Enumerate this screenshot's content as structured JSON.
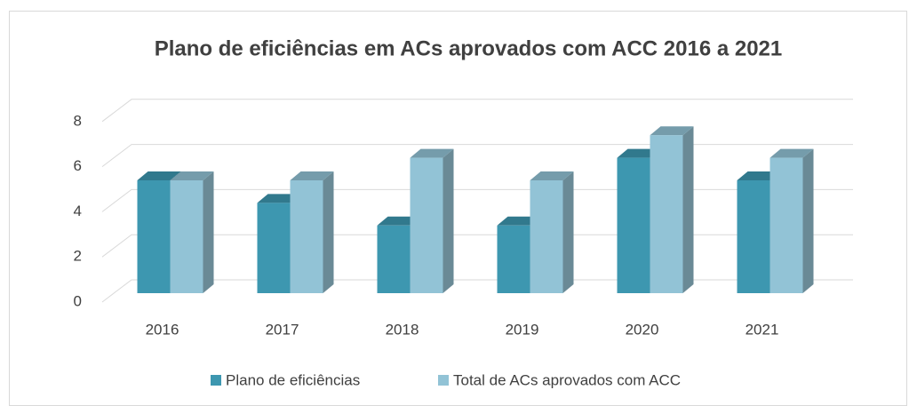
{
  "chart_data": {
    "type": "bar3d",
    "title": "Plano de eficiências em ACs aprovados com ACC  2016 a 2021",
    "categories": [
      "2016",
      "2017",
      "2018",
      "2019",
      "2020",
      "2021"
    ],
    "series": [
      {
        "name": "Plano de eficiências",
        "color": "#3d97b0",
        "values": [
          5,
          4,
          3,
          3,
          6,
          5
        ]
      },
      {
        "name": "Total de ACs aprovados com ACC",
        "color": "#92c3d6",
        "values": [
          5,
          5,
          6,
          5,
          7,
          6
        ]
      }
    ],
    "ylim": [
      0,
      8
    ],
    "yticks": [
      0,
      2,
      4,
      6,
      8
    ],
    "grid": true,
    "legend": "bottom"
  }
}
